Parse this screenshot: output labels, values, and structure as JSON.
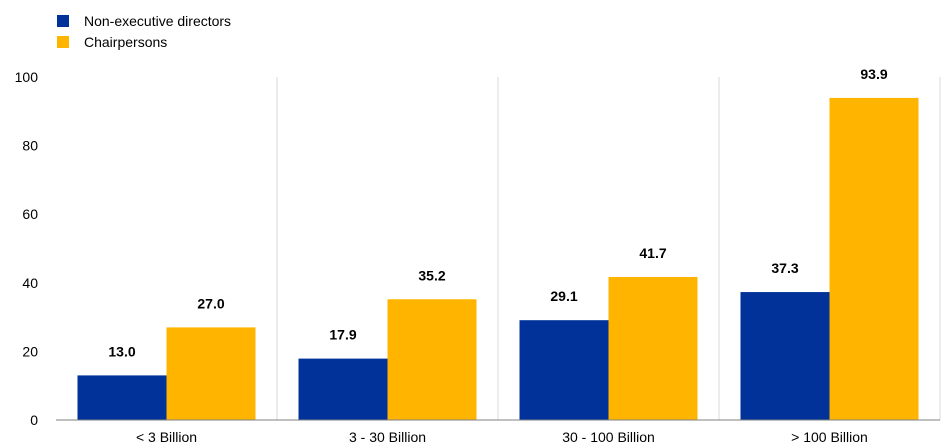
{
  "chart_data": {
    "type": "bar",
    "categories": [
      "< 3 Billion",
      "3 - 30 Billion",
      "30 - 100 Billion",
      "> 100 Billion"
    ],
    "series": [
      {
        "name": "Non-executive directors",
        "color": "#003299",
        "values": [
          13.0,
          17.9,
          29.1,
          37.3
        ],
        "labels": [
          "13.0",
          "17.9",
          "29.1",
          "37.3"
        ]
      },
      {
        "name": "Chairpersons",
        "color": "#FFB400",
        "values": [
          27.0,
          35.2,
          41.7,
          93.9
        ],
        "labels": [
          "27.0",
          "35.2",
          "41.7",
          "93.9"
        ]
      }
    ],
    "yticks": [
      "0",
      "20",
      "40",
      "60",
      "80",
      "100"
    ],
    "ylim": [
      0,
      100
    ],
    "grid": "vertical separators between categories",
    "legend": "top-left"
  }
}
